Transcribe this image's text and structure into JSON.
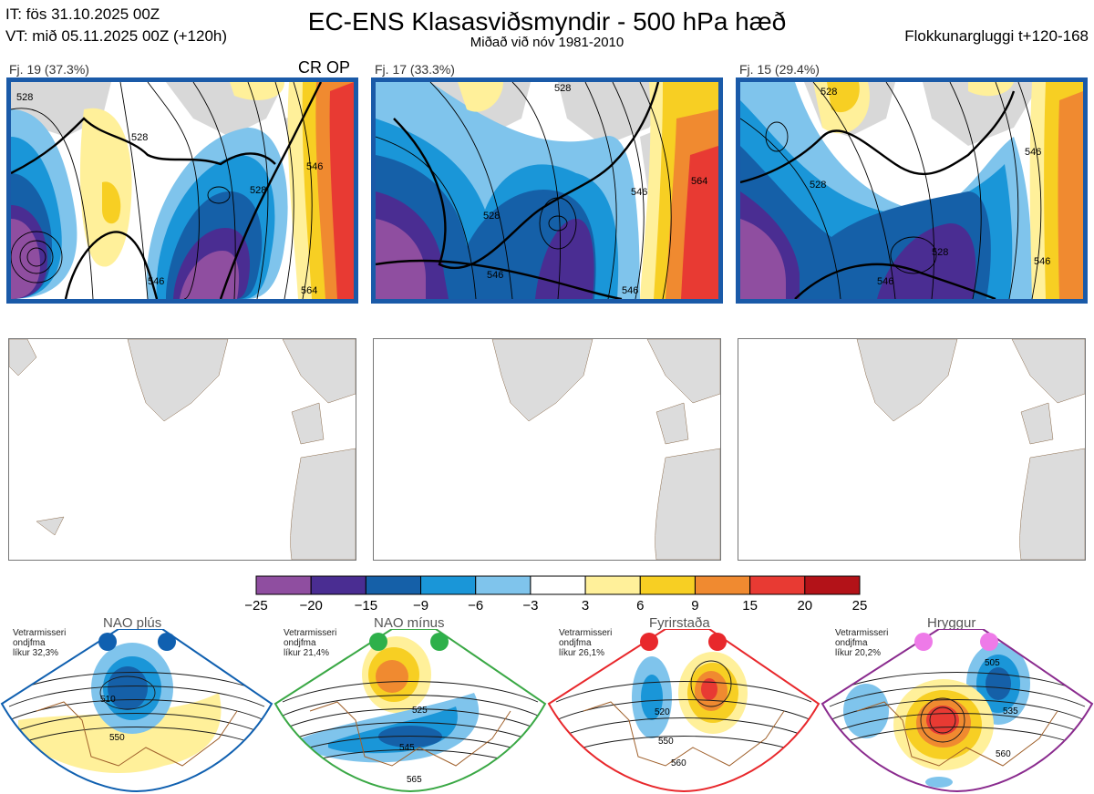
{
  "header": {
    "init_time": "IT: fös 31.10.2025 00Z",
    "valid_time": "VT: mið 05.11.2025 00Z  (+120h)",
    "title": "EC-ENS Klasasviðsmyndir - 500 hPa hæð",
    "subtitle": "Miðað við nóv 1981-2010",
    "window": "Flokkunargluggi t+120-168"
  },
  "clusters": [
    {
      "label": "Fj. 19 (37.3%)",
      "marker": "CR OP",
      "contours": [
        "528",
        "528",
        "546",
        "528",
        "546",
        "564"
      ]
    },
    {
      "label": "Fj. 17 (33.3%)",
      "marker": "",
      "contours": [
        "528",
        "528",
        "546",
        "546",
        "564",
        "546"
      ]
    },
    {
      "label": "Fj. 15 (29.4%)",
      "marker": "",
      "contours": [
        "528",
        "546",
        "528",
        "528",
        "546",
        "546"
      ]
    }
  ],
  "colorbar": {
    "colors": [
      "#8f4ea0",
      "#4a2d92",
      "#1560a8",
      "#1a96d8",
      "#7fc4ec",
      "#ffffff",
      "#fff09a",
      "#f7cf23",
      "#f08a30",
      "#e83a33",
      "#b31218"
    ],
    "ticks": [
      "−25",
      "−20",
      "−15",
      "−9",
      "−6",
      "−3",
      "3",
      "6",
      "9",
      "15",
      "20",
      "25"
    ]
  },
  "regimes": [
    {
      "name": "NAO plús",
      "info_line1": "Vetrarmisseri",
      "info_line2": "ondjfma",
      "info_line3": "líkur 32,3%",
      "color": "#1060b0",
      "dot_color": "#1060b0",
      "contours": [
        "510",
        "550"
      ]
    },
    {
      "name": "NAO mínus",
      "info_line1": "Vetrarmisseri",
      "info_line2": "ondjfma",
      "info_line3": "líkur 21,4%",
      "color": "#3aa845",
      "dot_color": "#2eb04a",
      "contours": [
        "525",
        "545",
        "565"
      ]
    },
    {
      "name": "Fyrirstaða",
      "info_line1": "Vetrarmisseri",
      "info_line2": "ondjfma",
      "info_line3": "líkur 26,1%",
      "color": "#e8282c",
      "dot_color": "#e8282c",
      "contours": [
        "520",
        "550",
        "560"
      ]
    },
    {
      "name": "Hryggur",
      "info_line1": "Vetrarmisseri",
      "info_line2": "ondjfma",
      "info_line3": "líkur 20,2%",
      "color": "#8a2b8e",
      "dot_color": "#ee7ae8",
      "contours": [
        "505",
        "535",
        "560"
      ]
    }
  ]
}
